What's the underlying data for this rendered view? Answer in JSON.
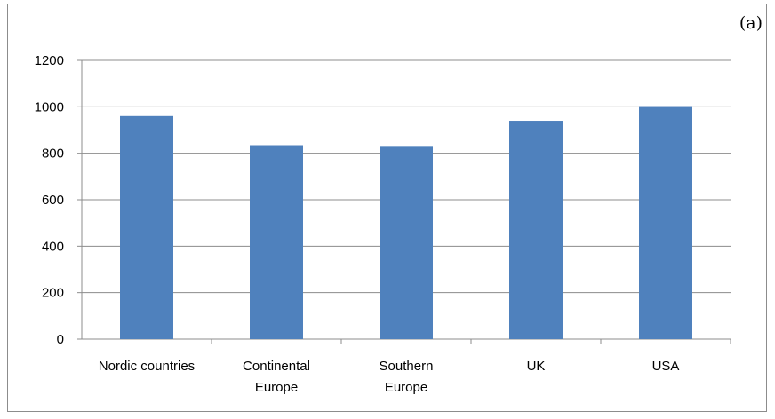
{
  "panel_label": "(a)",
  "chart_data": {
    "type": "bar",
    "categories": [
      [
        "Nordic countries"
      ],
      [
        "Continental",
        "Europe"
      ],
      [
        "Southern",
        "Europe"
      ],
      [
        "UK"
      ],
      [
        "USA"
      ]
    ],
    "values": [
      960,
      835,
      828,
      940,
      1003
    ],
    "ylim": [
      0,
      1200
    ],
    "yticks": [
      "0",
      "200",
      "400",
      "600",
      "800",
      "1000",
      "1200"
    ],
    "grid": true,
    "bar_color": "#4f81bd",
    "grid_color": "#8c8c8c"
  }
}
